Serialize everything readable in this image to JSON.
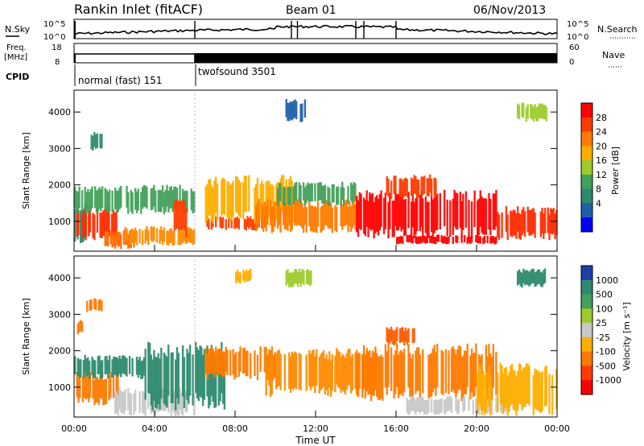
{
  "header": {
    "station": "Rankin Inlet (fitACF)",
    "beam": "Beam 01",
    "date": "06/Nov/2013"
  },
  "status_panels": {
    "nsky_label": "N.Sky",
    "nsky_ticks": [
      "10^5",
      "10^0"
    ],
    "nsearch_label": "N.Search",
    "nsearch_ticks": [
      "10^5",
      "10^0"
    ],
    "freq_label": "Freq.",
    "freq_unit": "[MHz]",
    "freq_ticks": [
      "18",
      "8"
    ],
    "nave_label": "Nave",
    "nave_ticks": [
      "60",
      "0"
    ],
    "cpid_label": "CPID",
    "cpid_modes": [
      {
        "name": "normal (fast) 151",
        "start_hour": 0,
        "end_hour": 6
      },
      {
        "name": "twofsound 3501",
        "start_hour": 6,
        "end_hour": 24
      }
    ]
  },
  "chart_data": [
    {
      "type": "heatmap",
      "name": "power",
      "ylabel": "Slant Range [km]",
      "xlabel": "",
      "yticks": [
        1000,
        2000,
        3000,
        4000
      ],
      "ylim": [
        180,
        4600
      ],
      "xlim": [
        0,
        24
      ],
      "colorbar": {
        "label": "Power [dB]",
        "ticks": [
          "28",
          "24",
          "20",
          "16",
          "12",
          "8",
          "4"
        ],
        "colors": [
          "#ff0000",
          "#ff3c00",
          "#ff7a00",
          "#ffae00",
          "#9ccc2c",
          "#43a05a",
          "#2d8a6e",
          "#1f5ea8",
          "#0000ff"
        ]
      },
      "regions": [
        {
          "t0": 0.0,
          "t1": 0.7,
          "r0": 500,
          "r1": 1400,
          "color": "#2d8a6e"
        },
        {
          "t0": 0.1,
          "t1": 2.2,
          "r0": 600,
          "r1": 1300,
          "color": "#ff2a00"
        },
        {
          "t0": 1.5,
          "t1": 3.0,
          "r0": 300,
          "r1": 700,
          "color": "#ff6a00"
        },
        {
          "t0": 2.5,
          "t1": 6.0,
          "r0": 400,
          "r1": 800,
          "color": "#ff8a00"
        },
        {
          "t0": 0.0,
          "t1": 6.0,
          "r0": 1300,
          "r1": 1900,
          "color": "#43a05a"
        },
        {
          "t0": 0.6,
          "t1": 1.4,
          "r0": 3000,
          "r1": 3400,
          "color": "#2d8a6e"
        },
        {
          "t0": 4.8,
          "t1": 5.6,
          "r0": 700,
          "r1": 1500,
          "color": "#ff3c00"
        },
        {
          "t0": 6.5,
          "t1": 9.5,
          "r0": 800,
          "r1": 1100,
          "color": "#ff3c00"
        },
        {
          "t0": 6.5,
          "t1": 11.0,
          "r0": 1100,
          "r1": 2100,
          "color": "#ffae00"
        },
        {
          "t0": 9.0,
          "t1": 14.0,
          "r0": 800,
          "r1": 1500,
          "color": "#ff7a00"
        },
        {
          "t0": 10.0,
          "t1": 14.0,
          "r0": 1500,
          "r1": 2000,
          "color": "#43a05a"
        },
        {
          "t0": 10.5,
          "t1": 11.5,
          "r0": 3800,
          "r1": 4300,
          "color": "#1f5ea8"
        },
        {
          "t0": 14.0,
          "t1": 21.0,
          "r0": 700,
          "r1": 1700,
          "color": "#ff0000"
        },
        {
          "t0": 15.5,
          "t1": 18.0,
          "r0": 1700,
          "r1": 2200,
          "color": "#ff3c00"
        },
        {
          "t0": 16.0,
          "t1": 21.0,
          "r0": 400,
          "r1": 600,
          "color": "#ff0000"
        },
        {
          "t0": 21.0,
          "t1": 24.0,
          "r0": 600,
          "r1": 1300,
          "color": "#ff2a00"
        },
        {
          "t0": 22.0,
          "t1": 23.5,
          "r0": 3800,
          "r1": 4200,
          "color": "#9ccc2c"
        }
      ]
    },
    {
      "type": "heatmap",
      "name": "velocity",
      "ylabel": "Slant Range [km]",
      "xlabel": "Time UT",
      "xticks": [
        "00:00",
        "04:00",
        "08:00",
        "12:00",
        "16:00",
        "20:00",
        "00:00"
      ],
      "yticks": [
        1000,
        2000,
        3000,
        4000
      ],
      "ylim": [
        180,
        4600
      ],
      "xlim": [
        0,
        24
      ],
      "colorbar": {
        "label": "Velocity [m s⁻¹]",
        "ticks": [
          "1000",
          "500",
          "100",
          "25",
          "-25",
          "-100",
          "-500",
          "-1000"
        ],
        "colors": [
          "#1f3ea8",
          "#2d8a6e",
          "#43a05a",
          "#9ccc2c",
          "#c8c8c8",
          "#ffae00",
          "#ff7a00",
          "#ff3c00",
          "#ff0000"
        ]
      },
      "regions": [
        {
          "t0": 0.0,
          "t1": 0.5,
          "r0": 2500,
          "r1": 2800,
          "color": "#ff7a00"
        },
        {
          "t0": 0.1,
          "t1": 2.2,
          "r0": 600,
          "r1": 1300,
          "color": "#ff7a00"
        },
        {
          "t0": 0.0,
          "t1": 3.5,
          "r0": 1300,
          "r1": 1800,
          "color": "#2d8a6e"
        },
        {
          "t0": 2.0,
          "t1": 6.0,
          "r0": 300,
          "r1": 900,
          "color": "#c8c8c8"
        },
        {
          "t0": 3.5,
          "t1": 7.5,
          "r0": 600,
          "r1": 2000,
          "color": "#2d8a6e"
        },
        {
          "t0": 6.5,
          "t1": 10.0,
          "r0": 1300,
          "r1": 2000,
          "color": "#ff7a00"
        },
        {
          "t0": 9.5,
          "t1": 15.0,
          "r0": 900,
          "r1": 1900,
          "color": "#ff8a00"
        },
        {
          "t0": 14.0,
          "t1": 21.0,
          "r0": 800,
          "r1": 2000,
          "color": "#ff7a00"
        },
        {
          "t0": 15.5,
          "t1": 17.0,
          "r0": 2200,
          "r1": 2600,
          "color": "#ff5a00"
        },
        {
          "t0": 16.5,
          "t1": 21.5,
          "r0": 300,
          "r1": 700,
          "color": "#c8c8c8"
        },
        {
          "t0": 20.0,
          "t1": 24.0,
          "r0": 400,
          "r1": 1500,
          "color": "#ffae00"
        },
        {
          "t0": 8.0,
          "t1": 8.8,
          "r0": 3900,
          "r1": 4200,
          "color": "#ffae00"
        },
        {
          "t0": 10.5,
          "t1": 11.8,
          "r0": 3800,
          "r1": 4200,
          "color": "#9ccc2c"
        },
        {
          "t0": 0.6,
          "t1": 1.4,
          "r0": 3100,
          "r1": 3400,
          "color": "#ff7a00"
        },
        {
          "t0": 22.0,
          "t1": 23.5,
          "r0": 3800,
          "r1": 4200,
          "color": "#2d8a6e"
        }
      ]
    }
  ]
}
